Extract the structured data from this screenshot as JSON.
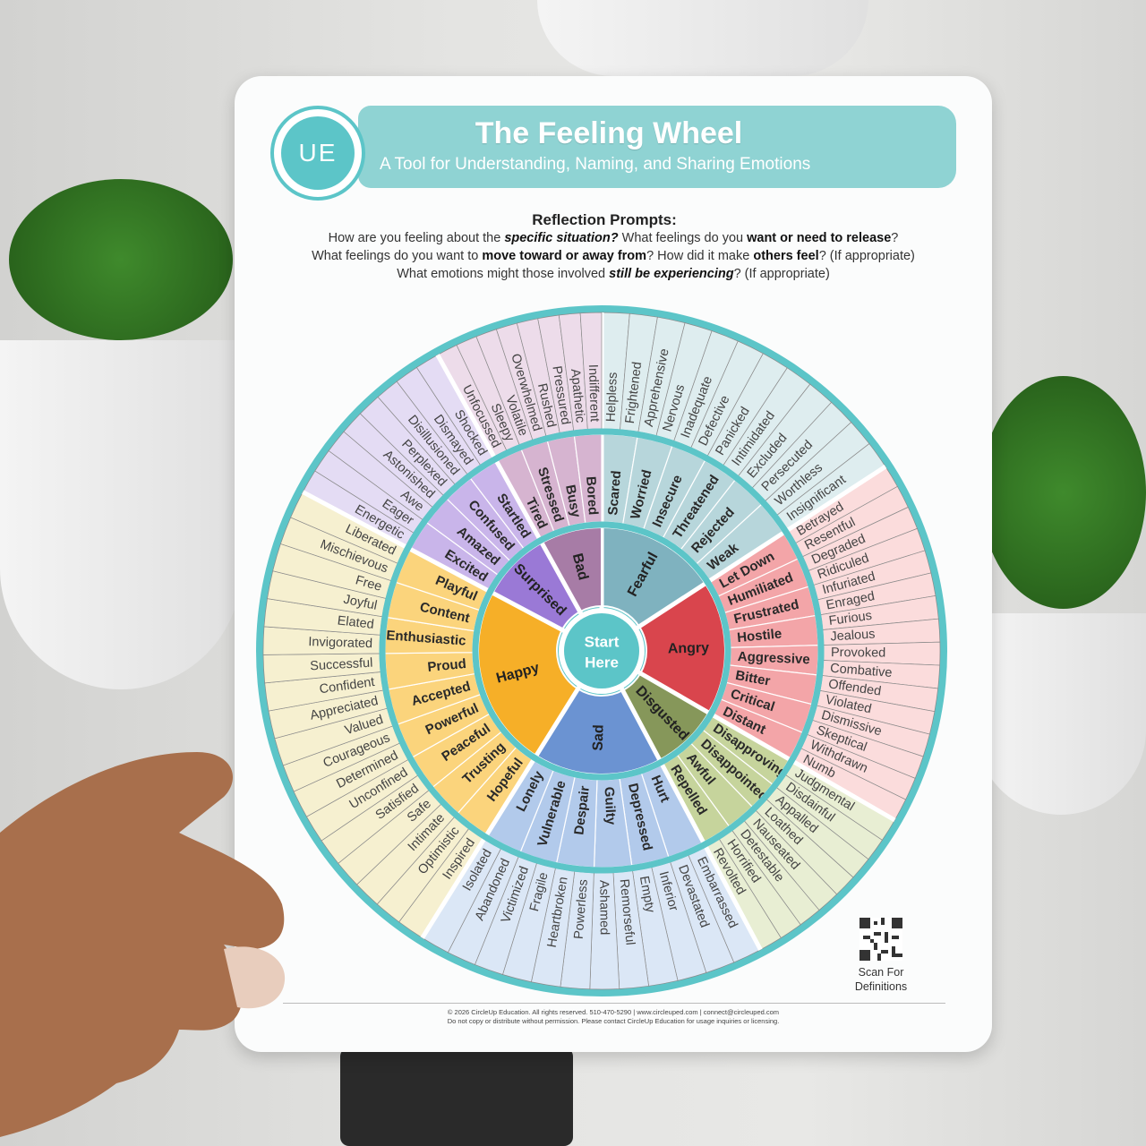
{
  "header": {
    "logo_text": "UE",
    "title": "The Feeling Wheel",
    "subtitle": "A Tool for Understanding, Naming, and Sharing Emotions"
  },
  "prompts": {
    "heading": "Reflection Prompts:",
    "lines": [
      [
        {
          "t": "How are you feeling about the ",
          "s": ""
        },
        {
          "t": "specific situation?",
          "s": "i"
        },
        {
          "t": " What feelings do you ",
          "s": ""
        },
        {
          "t": "want or need to release",
          "s": "b"
        },
        {
          "t": "?",
          "s": ""
        }
      ],
      [
        {
          "t": "What feelings do you want to ",
          "s": ""
        },
        {
          "t": "move toward or away from",
          "s": "b"
        },
        {
          "t": "? How did it make ",
          "s": ""
        },
        {
          "t": "others feel",
          "s": "b"
        },
        {
          "t": "? (If appropriate)",
          "s": ""
        }
      ],
      [
        {
          "t": "What emotions might those involved ",
          "s": ""
        },
        {
          "t": "still be experiencing",
          "s": "i"
        },
        {
          "t": "? (If appropriate)",
          "s": ""
        }
      ]
    ]
  },
  "wheel": {
    "center_label": [
      "Start",
      "Here"
    ],
    "colors": {
      "ring_border": "#5cc5c8",
      "center": "#5cc5c8"
    },
    "cores": [
      {
        "name": "Fearful",
        "colors": [
          "#7fb2bf",
          "#b7d6db",
          "#deedef"
        ],
        "secondary": [
          "Scared",
          "Worried",
          "Insecure",
          "Threatened",
          "Rejected",
          "Weak"
        ],
        "tertiary": [
          "Helpless",
          "Frightened",
          "Apprehensive",
          "Nervous",
          "Inadequate",
          "Defective",
          "Panicked",
          "Intimidated",
          "Excluded",
          "Persecuted",
          "Worthless",
          "Insignificant"
        ]
      },
      {
        "name": "Angry",
        "colors": [
          "#d9454d",
          "#f3a5a8",
          "#fbdcdc"
        ],
        "secondary": [
          "Let Down",
          "Humiliated",
          "Frustrated",
          "Hostile",
          "Aggressive",
          "Bitter",
          "Critical",
          "Distant"
        ],
        "tertiary": [
          "Betrayed",
          "Resentful",
          "Degraded",
          "Ridiculed",
          "Infuriated",
          "Enraged",
          "Furious",
          "Jealous",
          "Provoked",
          "Combative",
          "Offended",
          "Violated",
          "Dismissive",
          "Skeptical",
          "Withdrawn",
          "Numb"
        ]
      },
      {
        "name": "Disgusted",
        "colors": [
          "#86975a",
          "#c6d49c",
          "#e8eed3"
        ],
        "secondary": [
          "Disapproving",
          "Disappointed",
          "Awful",
          "Repelled"
        ],
        "tertiary": [
          "Judgmental",
          "Disdainful",
          "Appalled",
          "Loathed",
          "Nauseated",
          "Detestable",
          "Horrified",
          "Revolted"
        ]
      },
      {
        "name": "Sad",
        "colors": [
          "#6b93d2",
          "#b2caeb",
          "#dbe7f6"
        ],
        "secondary": [
          "Hurt",
          "Depressed",
          "Guilty",
          "Despair",
          "Vulnerable",
          "Lonely"
        ],
        "tertiary": [
          "Embarrassed",
          "Devastated",
          "Inferior",
          "Empty",
          "Remorseful",
          "Ashamed",
          "Powerless",
          "Heartbroken",
          "Fragile",
          "Victimized",
          "Abandoned",
          "Isolated"
        ]
      },
      {
        "name": "Happy",
        "colors": [
          "#f6af28",
          "#fbd47c",
          "#f6f0d0"
        ],
        "secondary": [
          "Hopeful",
          "Trusting",
          "Peaceful",
          "Powerful",
          "Accepted",
          "Proud",
          "Enthusiastic",
          "Content",
          "Playful"
        ],
        "tertiary": [
          "Inspired",
          "Optimistic",
          "Intimate",
          "Safe",
          "Satisfied",
          "Unconfined",
          "Determined",
          "Courageous",
          "Valued",
          "Appreciated",
          "Confident",
          "Successful",
          "Invigorated",
          "Elated",
          "Joyful",
          "Free",
          "Mischievous",
          "Liberated"
        ]
      },
      {
        "name": "Surprised",
        "colors": [
          "#9a79d6",
          "#c9b5ea",
          "#e4dcf4"
        ],
        "secondary": [
          "Excited",
          "Amazed",
          "Confused",
          "Startled"
        ],
        "tertiary": [
          "Energetic",
          "Eager",
          "Awe",
          "Astonished",
          "Perplexed",
          "Disillusioned",
          "Dismayed",
          "Shocked"
        ]
      },
      {
        "name": "Bad",
        "colors": [
          "#a77ca6",
          "#d6b4d0",
          "#eddcea"
        ],
        "secondary": [
          "Tired",
          "Stressed",
          "Busy",
          "Bored"
        ],
        "tertiary": [
          "Unfocussed",
          "Sleepy",
          "Volatile",
          "Overwhelmed",
          "Rushed",
          "Pressured",
          "Apathetic",
          "Indifferent"
        ]
      }
    ]
  },
  "qr": {
    "label": "Scan For Definitions"
  },
  "footer": {
    "line1": "© 2026 CircleUp Education. All rights reserved. 510-470-5290 | www.circleuped.com | connect@circleuped.com",
    "line2": "Do not copy or distribute without permission. Please contact CircleUp Education for usage inquiries or licensing."
  }
}
